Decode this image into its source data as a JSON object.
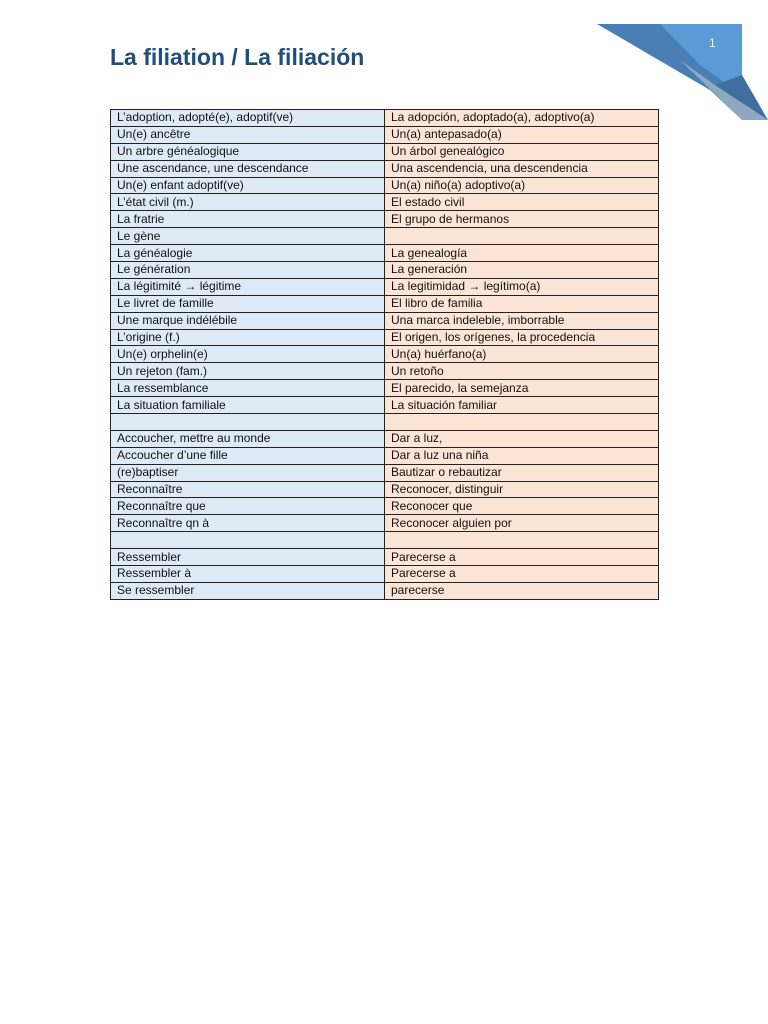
{
  "page_number": "1",
  "title": "La filiation / La filiación",
  "colors": {
    "title": "#1f4e79",
    "french_column": "#deebf7",
    "spanish_column": "#fce4d6",
    "corner_blue": "#5b9bd5"
  },
  "rows": [
    [
      "L’adoption, adopté(e), adoptif(ve)",
      "La adopción, adoptado(a), adoptivo(a)"
    ],
    [
      "Un(e) ancêtre",
      "Un(a) antepasado(a)"
    ],
    [
      "Un arbre généalogique",
      "Un árbol genealógico"
    ],
    [
      "Une ascendance, une descendance",
      "Una ascendencia, una descendencia"
    ],
    [
      "Un(e) enfant adoptif(ve)",
      "Un(a) niño(a) adoptivo(a)"
    ],
    [
      "L’état civil (m.)",
      "El estado civil"
    ],
    [
      "La fratrie",
      "El grupo de hermanos"
    ],
    [
      "Le gène",
      ""
    ],
    [
      "La généalogie",
      "La genealogía"
    ],
    [
      "Le génération",
      "La generación"
    ],
    [
      "La légitimité → légitime",
      "La legitimidad → legítimo(a)"
    ],
    [
      "Le livret de famille",
      "El libro de familia"
    ],
    [
      "Une marque indélébile",
      "Una marca indeleble, imborrable"
    ],
    [
      "L’origine (f.)",
      "El origen, los orígenes, la procedencia"
    ],
    [
      "Un(e) orphelin(e)",
      "Un(a) huérfano(a)"
    ],
    [
      "Un rejeton (fam.)",
      "Un retoño"
    ],
    [
      "La ressemblance",
      "El parecido, la semejanza"
    ],
    [
      "La situation familiale",
      "La situación familiar"
    ],
    [
      "",
      ""
    ],
    [
      "Accoucher, mettre au  monde",
      "Dar a luz,"
    ],
    [
      "Accoucher d’une fille",
      "Dar a luz una niña"
    ],
    [
      "(re)baptiser",
      "Bautizar o rebautizar"
    ],
    [
      "Reconnaître",
      "Reconocer, distinguir"
    ],
    [
      "Reconnaître que",
      "Reconocer que"
    ],
    [
      "Reconnaître qn à",
      "Reconocer alguien por"
    ],
    [
      "",
      ""
    ],
    [
      "Ressembler",
      "Parecerse a"
    ],
    [
      "Ressembler à",
      "Parecerse a"
    ],
    [
      "Se ressembler",
      "parecerse"
    ]
  ]
}
